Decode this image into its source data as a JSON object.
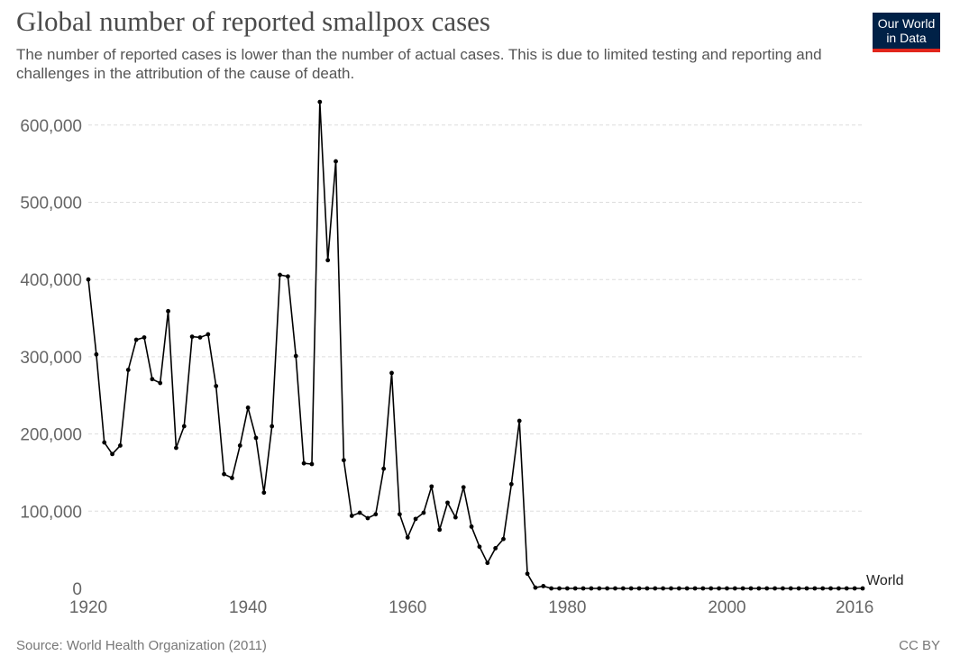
{
  "header": {
    "title": "Global number of reported smallpox cases",
    "subtitle": "The number of reported cases is lower than the number of actual cases. This is due to limited testing and reporting and challenges in the attribution of the cause of death.",
    "logo_line1": "Our World",
    "logo_line2": "in Data"
  },
  "footer": {
    "source": "Source: World Health Organization (2011)",
    "license": "CC BY"
  },
  "colors": {
    "line": "#000000",
    "logo_bg": "#002147",
    "logo_accent": "#e1261c"
  },
  "chart_data": {
    "type": "line",
    "title": "Global number of reported smallpox cases",
    "xlabel": "",
    "ylabel": "",
    "xlim": [
      1920,
      2016
    ],
    "ylim": [
      0,
      600000
    ],
    "y_ticks": [
      0,
      100000,
      200000,
      300000,
      400000,
      500000,
      600000
    ],
    "y_tick_labels": [
      "0",
      "100,000",
      "200,000",
      "300,000",
      "400,000",
      "500,000",
      "600,000"
    ],
    "x_tick_labels": [
      "1920",
      "1940",
      "1960",
      "1980",
      "2000",
      "2016"
    ],
    "grid": true,
    "series": [
      {
        "name": "World",
        "x": [
          1920,
          1921,
          1922,
          1923,
          1924,
          1925,
          1926,
          1927,
          1928,
          1929,
          1930,
          1931,
          1932,
          1933,
          1934,
          1935,
          1936,
          1937,
          1938,
          1939,
          1940,
          1941,
          1942,
          1943,
          1944,
          1945,
          1946,
          1947,
          1948,
          1949,
          1950,
          1951,
          1952,
          1953,
          1954,
          1955,
          1956,
          1957,
          1958,
          1959,
          1960,
          1961,
          1962,
          1963,
          1964,
          1965,
          1966,
          1967,
          1968,
          1969,
          1970,
          1971,
          1972,
          1973,
          1974,
          1975,
          1976,
          1977,
          1978,
          1979,
          1980,
          1981,
          1982,
          1983,
          1984,
          1985,
          1986,
          1987,
          1988,
          1989,
          1990,
          1991,
          1992,
          1993,
          1994,
          1995,
          1996,
          1997,
          1998,
          1999,
          2000,
          2001,
          2002,
          2003,
          2004,
          2005,
          2006,
          2007,
          2008,
          2009,
          2010,
          2011,
          2012,
          2013,
          2014,
          2015,
          2016,
          2017
        ],
        "values": [
          400000,
          303000,
          189000,
          174000,
          185000,
          283000,
          322000,
          325000,
          271000,
          266000,
          359000,
          182000,
          210000,
          326000,
          325000,
          329000,
          262000,
          148000,
          143000,
          185000,
          234000,
          195000,
          124000,
          210000,
          406000,
          404000,
          301000,
          162000,
          161000,
          630000,
          425000,
          553000,
          166000,
          94000,
          98000,
          91000,
          96000,
          155000,
          279000,
          96000,
          66000,
          90000,
          98000,
          132000,
          76000,
          111000,
          92000,
          131000,
          80000,
          54000,
          33000,
          52000,
          64000,
          135000,
          217000,
          19000,
          1000,
          3000,
          0,
          0,
          0,
          0,
          0,
          0,
          0,
          0,
          0,
          0,
          0,
          0,
          0,
          0,
          0,
          0,
          0,
          0,
          0,
          0,
          0,
          0,
          0,
          0,
          0,
          0,
          0,
          0,
          0,
          0,
          0,
          0,
          0,
          0,
          0,
          0,
          0,
          0,
          0,
          0
        ]
      }
    ]
  }
}
